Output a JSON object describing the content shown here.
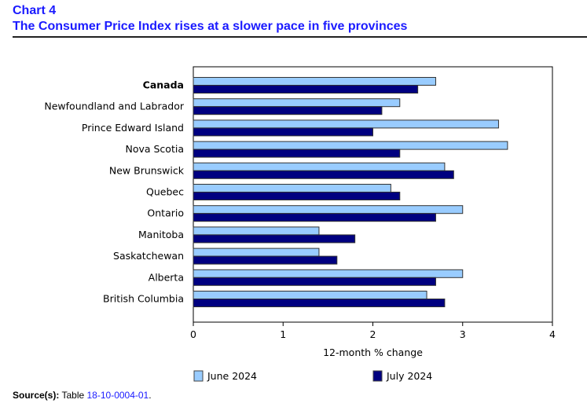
{
  "header": {
    "chart_number": "Chart 4",
    "title": "The Consumer Price Index rises at a slower pace in five provinces"
  },
  "chart_data": {
    "type": "bar",
    "orientation": "horizontal",
    "title": "The Consumer Price Index rises at a slower pace in five provinces",
    "xlabel": "12-month % change",
    "ylabel": "",
    "xlim": [
      0,
      4
    ],
    "xticks": [
      0,
      1,
      2,
      3,
      4
    ],
    "grid": false,
    "legend_position": "bottom",
    "categories": [
      "Canada",
      "Newfoundland and Labrador",
      "Prince Edward Island",
      "Nova Scotia",
      "New Brunswick",
      "Quebec",
      "Ontario",
      "Manitoba",
      "Saskatchewan",
      "Alberta",
      "British Columbia"
    ],
    "bold_categories": [
      "Canada"
    ],
    "series": [
      {
        "name": "June 2024",
        "color": "#99ccff",
        "values": [
          2.7,
          2.3,
          3.4,
          3.5,
          2.8,
          2.2,
          3.0,
          1.4,
          1.4,
          3.0,
          2.6
        ]
      },
      {
        "name": "July 2024",
        "color": "#000080",
        "values": [
          2.5,
          2.1,
          2.0,
          2.3,
          2.9,
          2.3,
          2.7,
          1.8,
          1.6,
          2.7,
          2.8
        ]
      }
    ]
  },
  "source": {
    "label": "Source(s):",
    "text": "Table",
    "link": "18-10-0004-01",
    "end": "."
  }
}
